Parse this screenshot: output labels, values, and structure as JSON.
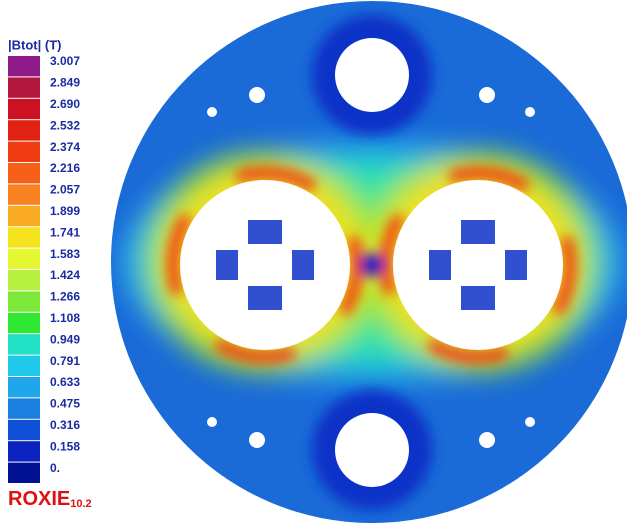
{
  "legend": {
    "title": "|Btot| (T)",
    "levels": [
      {
        "label": "3.007",
        "color": "#8e1a8a"
      },
      {
        "label": "2.849",
        "color": "#b3173e"
      },
      {
        "label": "2.690",
        "color": "#cc1122"
      },
      {
        "label": "2.532",
        "color": "#e02212"
      },
      {
        "label": "2.374",
        "color": "#ef3c12"
      },
      {
        "label": "2.216",
        "color": "#f65f18"
      },
      {
        "label": "2.057",
        "color": "#f88222"
      },
      {
        "label": "1.899",
        "color": "#f8aa22"
      },
      {
        "label": "1.741",
        "color": "#f6e21e"
      },
      {
        "label": "1.583",
        "color": "#e4f832"
      },
      {
        "label": "1.424",
        "color": "#b6f040"
      },
      {
        "label": "1.266",
        "color": "#7ee83a"
      },
      {
        "label": "1.108",
        "color": "#2fe832"
      },
      {
        "label": "0.949",
        "color": "#22e0c4"
      },
      {
        "label": "0.791",
        "color": "#20c8ea"
      },
      {
        "label": "0.633",
        "color": "#20a6ea"
      },
      {
        "label": "0.475",
        "color": "#1a80e0"
      },
      {
        "label": "0.316",
        "color": "#1050d8"
      },
      {
        "label": "0.158",
        "color": "#0a22c0"
      },
      {
        "label": "0.",
        "color": "#001090"
      }
    ]
  },
  "logo": {
    "name": "ROXIE",
    "version": "10.2"
  }
}
